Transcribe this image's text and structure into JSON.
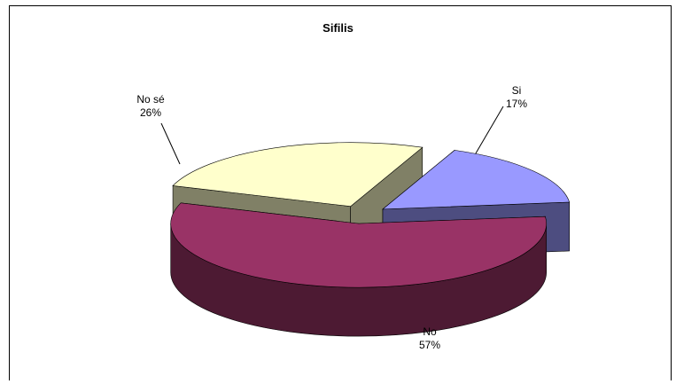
{
  "chart_data": {
    "type": "pie",
    "title": "Sifilis",
    "three_d": true,
    "exploded": true,
    "categories": [
      "Si",
      "No",
      "No sé"
    ],
    "values": [
      17,
      57,
      26
    ],
    "value_labels": [
      "17%",
      "57%",
      "26%"
    ],
    "colors": {
      "Si": "#9999ff",
      "No": "#993366",
      "No sé": "#ffffcc"
    },
    "side_colors": {
      "Si": "#4d4d80",
      "No": "#4d1a33",
      "No sé": "#808066"
    },
    "legend": "none"
  }
}
